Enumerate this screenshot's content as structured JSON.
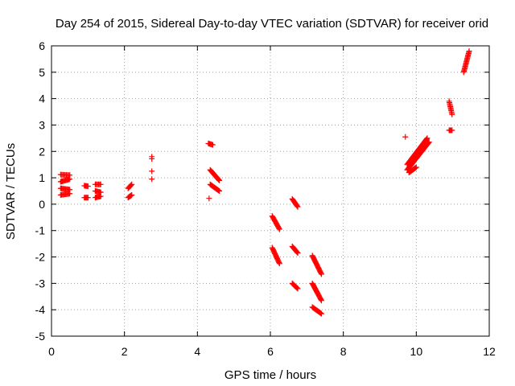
{
  "chart_data": {
    "type": "scatter",
    "title": "Day 254 of 2015, Sidereal Day-to-day VTEC variation (SDTVAR) for receiver orid",
    "xlabel": "GPS time / hours",
    "ylabel": "SDTVAR / TECUs",
    "xlim": [
      0,
      12
    ],
    "ylim": [
      -5,
      6
    ],
    "xticks": [
      0,
      2,
      4,
      6,
      8,
      10,
      12
    ],
    "yticks": [
      -5,
      -4,
      -3,
      -2,
      -1,
      0,
      1,
      2,
      3,
      4,
      5,
      6
    ],
    "grid": true,
    "marker": "+",
    "marker_color": "#ff0000",
    "segments": [
      {
        "x0": 0.25,
        "x1": 0.5,
        "y0": 1.12,
        "y1": 1.1
      },
      {
        "x0": 0.25,
        "x1": 0.5,
        "y0": 0.85,
        "y1": 0.95
      },
      {
        "x0": 0.25,
        "x1": 0.5,
        "y0": 0.6,
        "y1": 0.55
      },
      {
        "x0": 0.25,
        "x1": 0.5,
        "y0": 0.35,
        "y1": 0.4
      },
      {
        "x0": 0.9,
        "x1": 1.0,
        "y0": 0.7,
        "y1": 0.68
      },
      {
        "x0": 0.9,
        "x1": 1.0,
        "y0": 0.25,
        "y1": 0.25
      },
      {
        "x0": 1.2,
        "x1": 1.35,
        "y0": 0.75,
        "y1": 0.75
      },
      {
        "x0": 1.2,
        "x1": 1.35,
        "y0": 0.5,
        "y1": 0.45
      },
      {
        "x0": 1.2,
        "x1": 1.35,
        "y0": 0.25,
        "y1": 0.3
      },
      {
        "x0": 2.1,
        "x1": 2.2,
        "y0": 0.6,
        "y1": 0.75
      },
      {
        "x0": 2.1,
        "x1": 2.2,
        "y0": 0.25,
        "y1": 0.35
      },
      {
        "x0": 4.3,
        "x1": 4.42,
        "y0": 2.3,
        "y1": 2.25
      },
      {
        "x0": 4.35,
        "x1": 4.6,
        "y0": 1.3,
        "y1": 0.9
      },
      {
        "x0": 4.35,
        "x1": 4.6,
        "y0": 0.75,
        "y1": 0.5
      },
      {
        "x0": 6.05,
        "x1": 6.25,
        "y0": -0.45,
        "y1": -0.95
      },
      {
        "x0": 6.05,
        "x1": 6.25,
        "y0": -1.65,
        "y1": -2.25
      },
      {
        "x0": 6.6,
        "x1": 6.75,
        "y0": 0.2,
        "y1": -0.1
      },
      {
        "x0": 6.6,
        "x1": 6.75,
        "y0": -1.6,
        "y1": -1.85
      },
      {
        "x0": 6.6,
        "x1": 6.75,
        "y0": -3.0,
        "y1": -3.2
      },
      {
        "x0": 7.15,
        "x1": 7.4,
        "y0": -1.95,
        "y1": -2.65
      },
      {
        "x0": 7.15,
        "x1": 7.4,
        "y0": -3.0,
        "y1": -3.65
      },
      {
        "x0": 7.15,
        "x1": 7.4,
        "y0": -3.9,
        "y1": -4.15
      },
      {
        "x0": 9.75,
        "x1": 10.35,
        "y0": 1.3,
        "y1": 2.35
      },
      {
        "x0": 9.75,
        "x1": 10.3,
        "y0": 1.5,
        "y1": 2.5
      },
      {
        "x0": 9.8,
        "x1": 10.0,
        "y0": 1.2,
        "y1": 1.4
      },
      {
        "x0": 10.9,
        "x1": 10.98,
        "y0": 3.9,
        "y1": 3.4
      },
      {
        "x0": 10.9,
        "x1": 10.98,
        "y0": 2.8,
        "y1": 2.8
      },
      {
        "x0": 11.3,
        "x1": 11.45,
        "y0": 5.0,
        "y1": 5.8
      }
    ],
    "points": [
      {
        "x": 2.75,
        "y": 1.8
      },
      {
        "x": 2.75,
        "y": 1.72
      },
      {
        "x": 2.75,
        "y": 1.25
      },
      {
        "x": 2.75,
        "y": 0.95
      },
      {
        "x": 4.32,
        "y": 0.22
      },
      {
        "x": 9.7,
        "y": 2.55
      }
    ]
  }
}
